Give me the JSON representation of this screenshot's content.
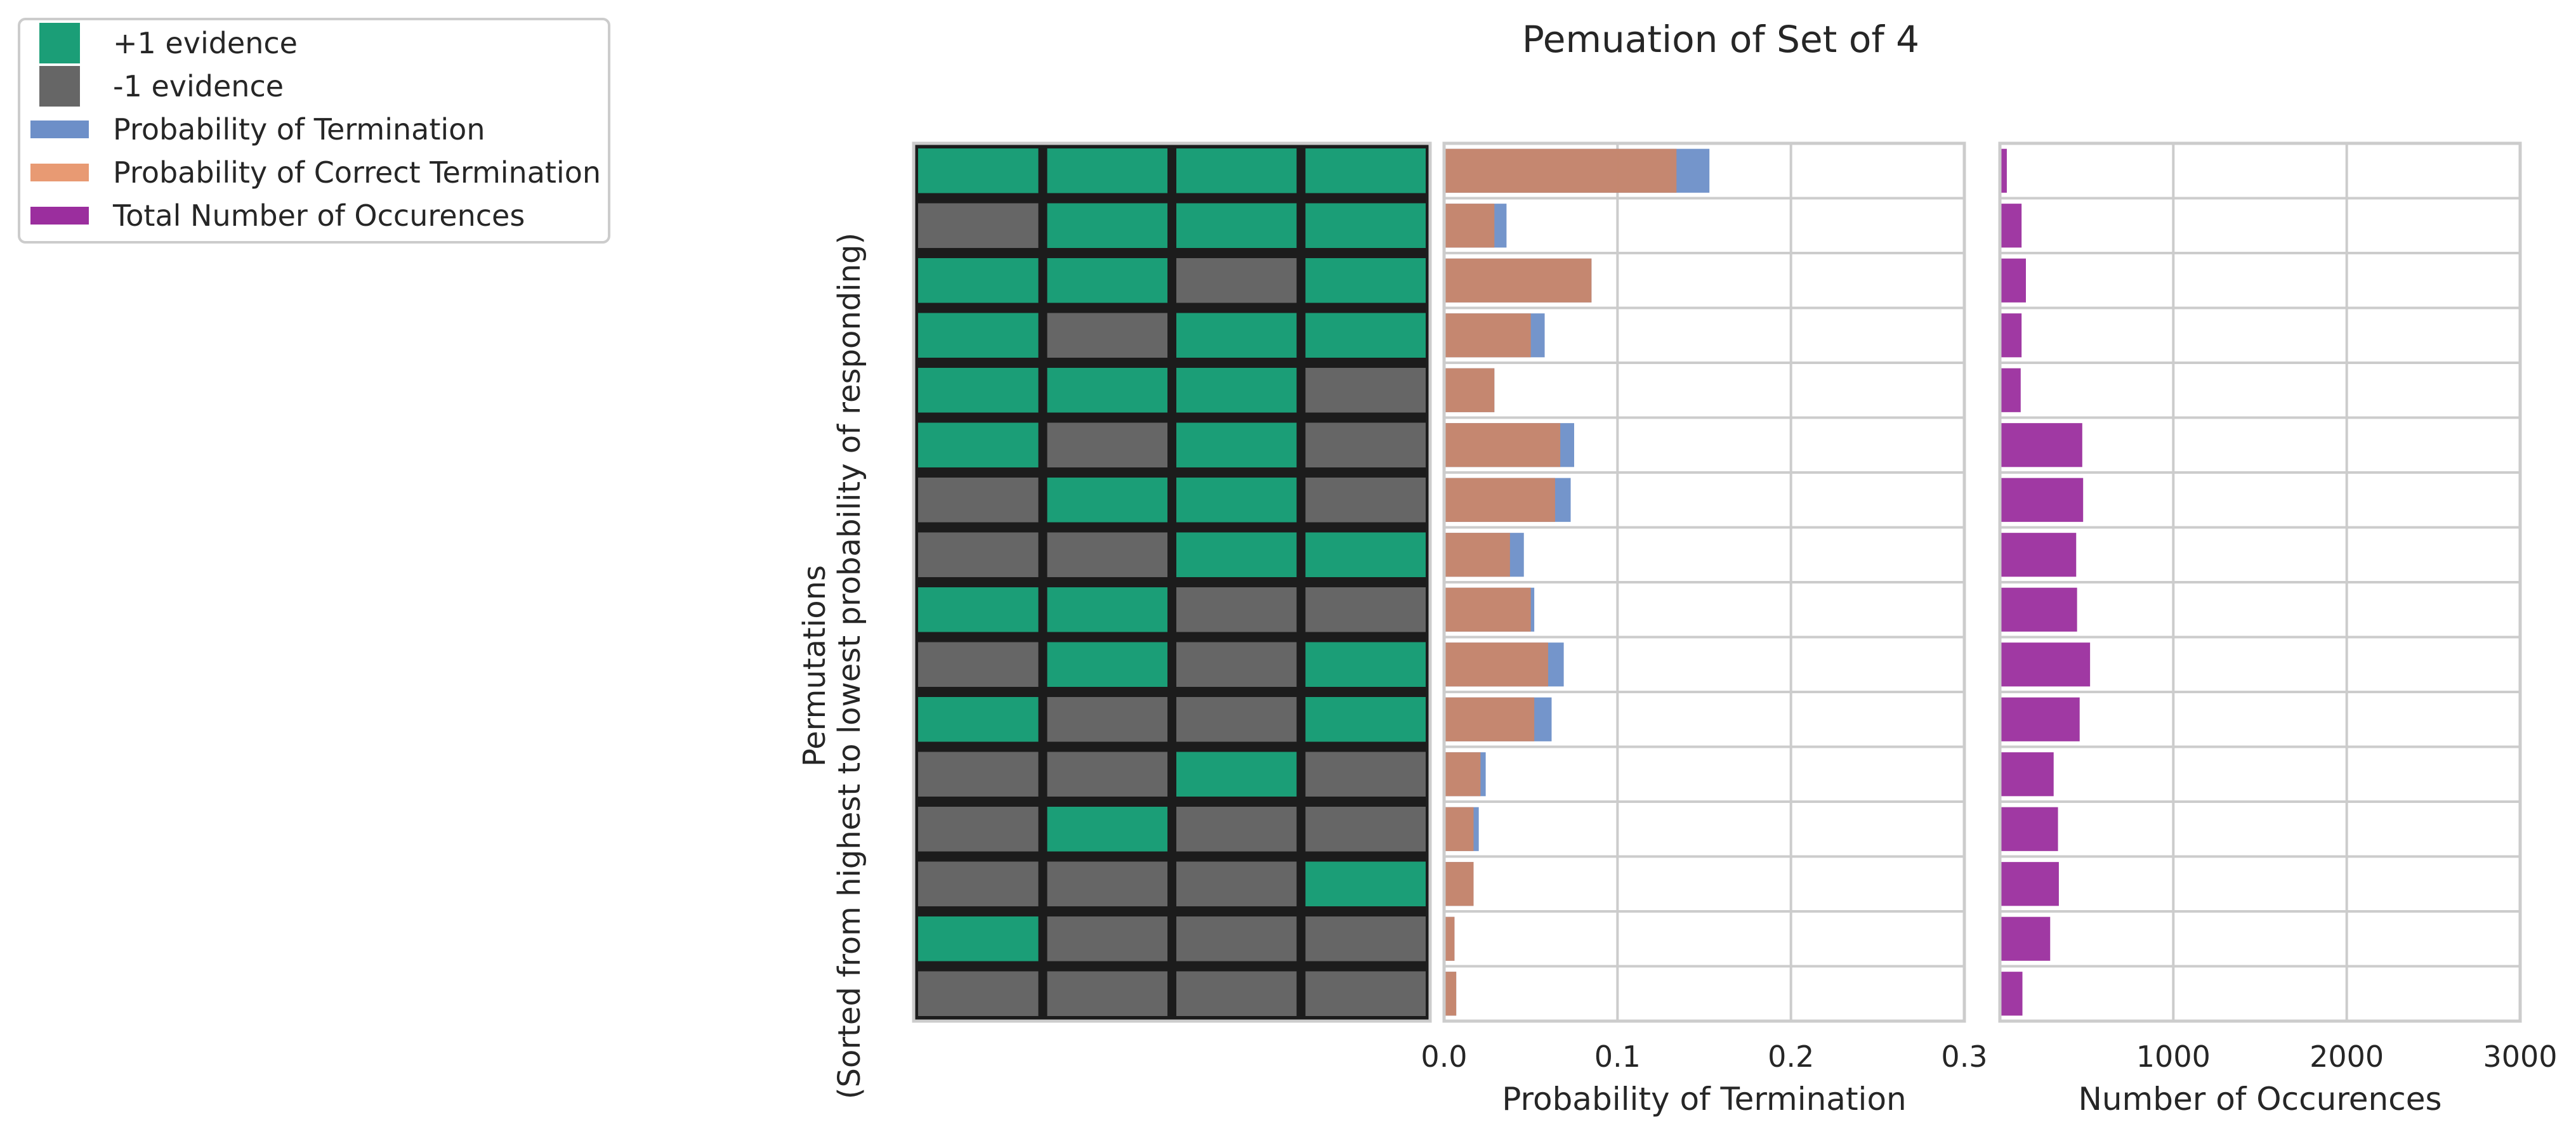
{
  "chart_data": {
    "type": "bar",
    "title": "Pemuation of Set of 4",
    "ylabel_lines": [
      "Permutations",
      "(Sorted from highest to lowest probability of responding)"
    ],
    "legend": {
      "placement": "top-left",
      "entries": [
        {
          "label": "+1 evidence",
          "color": "#1b9e77",
          "kind": "square"
        },
        {
          "label": "-1 evidence",
          "color": "#666666",
          "kind": "square"
        },
        {
          "label": "Probability of Termination",
          "color": "#6d8fc8",
          "kind": "bar"
        },
        {
          "label": "Probability of Correct Termination",
          "color": "#e89a73",
          "kind": "bar"
        },
        {
          "label": "Total Number of Occurences",
          "color": "#9b2e9e",
          "kind": "bar"
        }
      ]
    },
    "permutations": [
      [
        1,
        1,
        1,
        1
      ],
      [
        -1,
        1,
        1,
        1
      ],
      [
        1,
        1,
        -1,
        1
      ],
      [
        1,
        -1,
        1,
        1
      ],
      [
        1,
        1,
        1,
        -1
      ],
      [
        1,
        -1,
        1,
        -1
      ],
      [
        -1,
        1,
        1,
        -1
      ],
      [
        -1,
        -1,
        1,
        1
      ],
      [
        1,
        1,
        -1,
        -1
      ],
      [
        -1,
        1,
        -1,
        1
      ],
      [
        1,
        -1,
        -1,
        1
      ],
      [
        -1,
        -1,
        1,
        -1
      ],
      [
        -1,
        1,
        -1,
        -1
      ],
      [
        -1,
        -1,
        -1,
        1
      ],
      [
        1,
        -1,
        -1,
        -1
      ],
      [
        -1,
        -1,
        -1,
        -1
      ]
    ],
    "panels": [
      {
        "xlabel": "Probability of Termination",
        "xlim": [
          0,
          0.3
        ],
        "xticks": [
          0.0,
          0.1,
          0.2,
          0.3
        ],
        "xtick_labels": [
          "0.0",
          "0.1",
          "0.2",
          "0.3"
        ],
        "grid": true,
        "series": [
          {
            "name": "Probability of Termination",
            "color": "#6d8fc8",
            "values": [
              0.153,
              0.036,
              0.085,
              0.058,
              0.029,
              0.075,
              0.073,
              0.046,
              0.052,
              0.069,
              0.062,
              0.024,
              0.02,
              0.017,
              0.006,
              0.007
            ]
          },
          {
            "name": "Probability of Correct Termination",
            "color": "#c9866a",
            "values": [
              0.134,
              0.029,
              0.085,
              0.05,
              0.029,
              0.067,
              0.064,
              0.038,
              0.05,
              0.06,
              0.052,
              0.021,
              0.017,
              0.017,
              0.006,
              0.007
            ]
          }
        ]
      },
      {
        "xlabel": "Number of Occurences",
        "xlim": [
          0,
          3000
        ],
        "xticks": [
          1000,
          2000,
          3000
        ],
        "xtick_labels": [
          "1000",
          "2000",
          "3000"
        ],
        "grid": true,
        "series": [
          {
            "name": "Total Number of Occurences",
            "color": "#9b2e9e",
            "values": [
              40,
              125,
              150,
              125,
              120,
              475,
              480,
              440,
              445,
              520,
              460,
              310,
              335,
              340,
              290,
              130
            ]
          }
        ]
      }
    ]
  }
}
